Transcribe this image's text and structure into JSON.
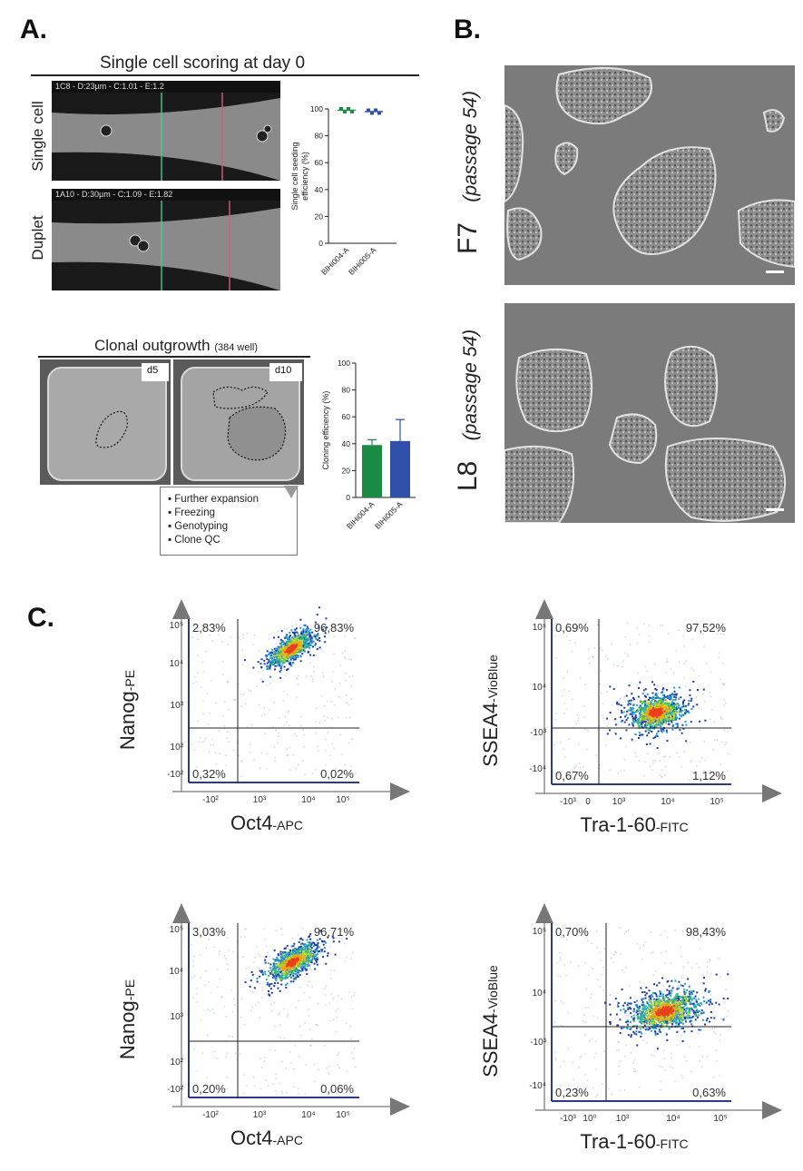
{
  "panels": {
    "A": {
      "letter": "A.",
      "scoring_title": "Single cell scoring at day 0",
      "row1_label": "Single cell",
      "row1_caption": "1C8 - D:23µm - C:1.01 - E:1.2",
      "row2_label": "Duplet",
      "row2_caption": "1A10 - D:30µm - C:1.09 - E:1.82",
      "outgrowth_title": "Clonal outgrowth",
      "outgrowth_sub": "(384 well)",
      "tile1_label": "d5",
      "tile2_label": "d10",
      "steps": [
        "Further expansion",
        "Freezing",
        "Genotyping",
        "Clone QC"
      ]
    },
    "B": {
      "letter": "B.",
      "top_label": "F7",
      "top_sub": "(passage 54)",
      "bottom_label": "L8",
      "bottom_sub": "(passage 54)"
    },
    "C": {
      "letter": "C."
    }
  },
  "chart_data": [
    {
      "id": "seeding",
      "type": "scatter",
      "ylabel": "Single cell seeding\nefficiency (%)",
      "ylim": [
        0,
        100
      ],
      "yticks": [
        0,
        20,
        40,
        60,
        80,
        100
      ],
      "categories": [
        "BIHi004-A",
        "BIHi005-A"
      ],
      "values": [
        99,
        98
      ],
      "colors": [
        "#1a8a45",
        "#2f4fa8"
      ]
    },
    {
      "id": "cloning",
      "type": "bar",
      "ylabel": "Cloning efficiency (%)",
      "ylim": [
        0,
        100
      ],
      "yticks": [
        0,
        20,
        40,
        60,
        80,
        100
      ],
      "categories": [
        "BIHi004-A",
        "BIHi005-A"
      ],
      "values": [
        39,
        42
      ],
      "errors": [
        4,
        16
      ],
      "colors": [
        "#1a8a45",
        "#2f4fa8"
      ]
    },
    {
      "id": "flow1",
      "type": "scatter",
      "xlabel": "Oct4",
      "xlabel_sub": "-APC",
      "ylabel": "Nanog",
      "ylabel_sub": "-PE",
      "quadrants": {
        "ul": "2,83%",
        "ur": "96,83%",
        "ll": "0,32%",
        "lr": "0,02%"
      },
      "xticks": [
        "-10²",
        "10³",
        "10⁴",
        "10⁵"
      ],
      "yticks": [
        "10⁵",
        "10⁴",
        "10³",
        "10²",
        "-10²"
      ]
    },
    {
      "id": "flow2",
      "type": "scatter",
      "xlabel": "Tra-1-60",
      "xlabel_sub": "-FITC",
      "ylabel": "SSEA4",
      "ylabel_sub": "-VioBlue",
      "quadrants": {
        "ul": "0,69%",
        "ur": "97,52%",
        "ll": "0,67%",
        "lr": "1,12%"
      },
      "xticks": [
        "-10³",
        "0",
        "10³",
        "10⁴",
        "10⁵"
      ],
      "yticks": [
        "10⁵",
        "10⁴",
        "-10³",
        "-10⁴"
      ]
    },
    {
      "id": "flow3",
      "type": "scatter",
      "xlabel": "Oct4",
      "xlabel_sub": "-APC",
      "ylabel": "Nanog",
      "ylabel_sub": "-PE",
      "quadrants": {
        "ul": "3,03%",
        "ur": "96,71%",
        "ll": "0,20%",
        "lr": "0,06%"
      },
      "xticks": [
        "-10²",
        "10³",
        "10⁴",
        "10⁵"
      ],
      "yticks": [
        "10⁵",
        "10⁴",
        "10³",
        "10²",
        "-10²"
      ]
    },
    {
      "id": "flow4",
      "type": "scatter",
      "xlabel": "Tra-1-60",
      "xlabel_sub": "-FITC",
      "ylabel": "SSEA4",
      "ylabel_sub": "-VioBlue",
      "quadrants": {
        "ul": "0,70%",
        "ur": "98,43%",
        "ll": "0,23%",
        "lr": "0,63%"
      },
      "xticks": [
        "-10³",
        "10⁰",
        "10³",
        "10⁴",
        "10⁵"
      ],
      "yticks": [
        "10⁵",
        "10⁴",
        "-10³",
        "-10⁴"
      ]
    }
  ]
}
